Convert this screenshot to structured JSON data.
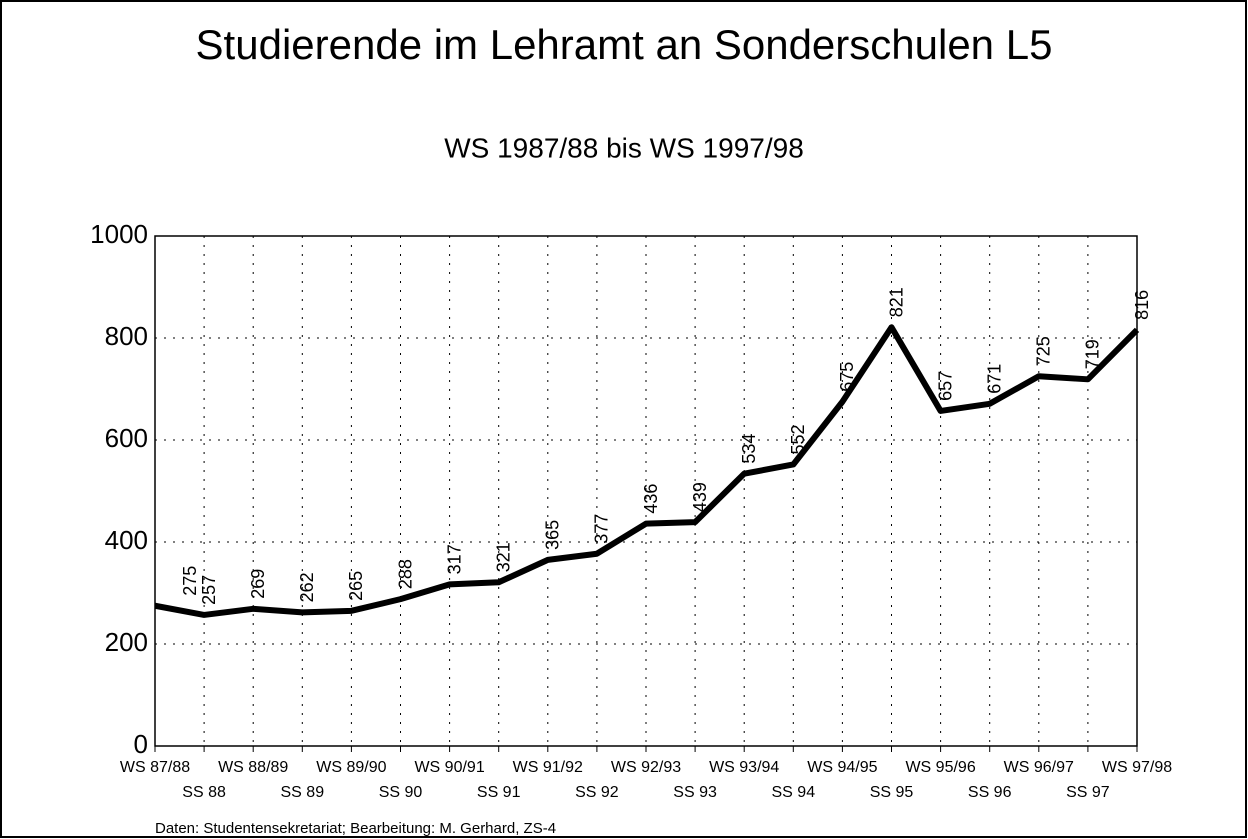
{
  "chart_data": {
    "type": "line",
    "title": "Studierende im Lehramt an Sonderschulen L5",
    "subtitle": "WS 1987/88 bis WS 1997/98",
    "source": "Daten: Studentensekretariat;  Bearbeitung:  M. Gerhard, ZS-4",
    "categories": [
      "WS 87/88",
      "SS 88",
      "WS 88/89",
      "SS 89",
      "WS 89/90",
      "SS 90",
      "WS 90/91",
      "SS 91",
      "WS 91/92",
      "SS 92",
      "WS 92/93",
      "SS 93",
      "WS 93/94",
      "SS 94",
      "WS 94/95",
      "SS 95",
      "WS 95/96",
      "SS 96",
      "WS 96/97",
      "SS 97",
      "WS 97/98"
    ],
    "values": [
      275,
      257,
      269,
      262,
      265,
      288,
      317,
      321,
      365,
      377,
      436,
      439,
      534,
      552,
      675,
      821,
      657,
      671,
      725,
      719,
      816
    ],
    "color": "#000000",
    "ylim": [
      0,
      1000
    ],
    "yticks": [
      0,
      200,
      400,
      600,
      800,
      1000
    ],
    "grid": true
  }
}
